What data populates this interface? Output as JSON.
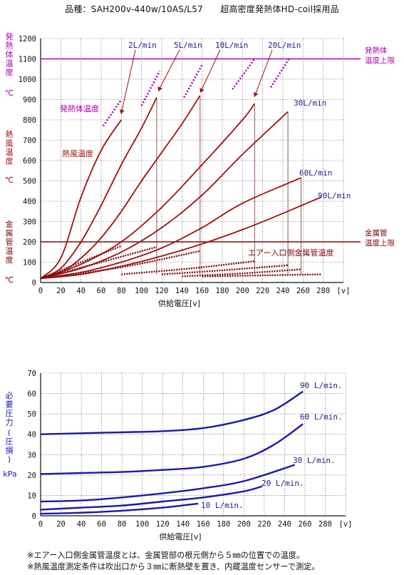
{
  "title": "品種：SAH200v-440w/10AS/L57　　超高密度発熱体HD-coil採用品",
  "notes": [
    "※エアー入口側金属管温度とは、金属管部の根元側から５㎜の位置での温度。",
    "※熱風温度測定条件は吹出口から３㎜に断熱壁を置き、内蔵温度センサーで測定。"
  ],
  "colors": {
    "heater": "#b000b0",
    "hot_air": "#a01010",
    "pipe": "#7a0a0a",
    "pressure": "#1a1aa8",
    "grid": "#555555"
  },
  "chart_data": [
    {
      "type": "line",
      "xlabel": "供給電圧[v]",
      "x_ticks": [
        "0",
        "20",
        "40",
        "60",
        "80",
        "100",
        "120",
        "140",
        "160",
        "180",
        "200",
        "220",
        "240",
        "260",
        "280",
        "[v]"
      ],
      "y_ticks": [
        "0",
        "100",
        "200",
        "300",
        "400",
        "500",
        "600",
        "700",
        "800",
        "900",
        "1000",
        "1100",
        "1200"
      ],
      "xlim": [
        0,
        300
      ],
      "ylim": [
        0,
        1200
      ],
      "grid": true,
      "y_axis_labels": [
        {
          "text": "発熱体温度℃",
          "color": "#b000b0"
        },
        {
          "text": "熱風温度℃",
          "color": "#a01010"
        },
        {
          "text": "金属管温度℃",
          "color": "#7a0a0a"
        }
      ],
      "thresholds": [
        {
          "name": "発熱体温度上限",
          "y": 1100,
          "color": "#b000b0"
        },
        {
          "name": "金属管温度上限",
          "y": 200,
          "color": "#7a0a0a"
        }
      ],
      "annotations": {
        "heater": "発熱体温度",
        "hot_air": "熱風温度",
        "pipe": "エアー入口側金属管温度"
      },
      "series": [
        {
          "name": "2L/min",
          "kind": "hot_air",
          "x": [
            0,
            20,
            40,
            60,
            80
          ],
          "y": [
            20,
            120,
            420,
            650,
            800
          ]
        },
        {
          "name": "5L/min",
          "kind": "hot_air",
          "x": [
            0,
            20,
            40,
            60,
            80,
            100,
            115
          ],
          "y": [
            20,
            70,
            200,
            380,
            580,
            760,
            910
          ]
        },
        {
          "name": "10L/min",
          "kind": "hot_air",
          "x": [
            0,
            20,
            40,
            60,
            80,
            100,
            120,
            140,
            158
          ],
          "y": [
            20,
            50,
            120,
            220,
            350,
            500,
            640,
            780,
            920
          ]
        },
        {
          "name": "20L/min",
          "kind": "hot_air",
          "x": [
            0,
            40,
            80,
            120,
            160,
            200,
            212
          ],
          "y": [
            20,
            90,
            200,
            370,
            580,
            800,
            880
          ]
        },
        {
          "name": "30L/min",
          "kind": "hot_air",
          "x": [
            0,
            40,
            80,
            120,
            160,
            200,
            245
          ],
          "y": [
            20,
            70,
            150,
            270,
            430,
            630,
            840
          ]
        },
        {
          "name": "60L/min",
          "kind": "hot_air",
          "x": [
            0,
            40,
            80,
            120,
            160,
            200,
            258
          ],
          "y": [
            20,
            50,
            100,
            170,
            270,
            390,
            515
          ]
        },
        {
          "name": "90L/min",
          "kind": "hot_air",
          "x": [
            0,
            40,
            80,
            120,
            160,
            200,
            240,
            278
          ],
          "y": [
            20,
            40,
            80,
            130,
            190,
            260,
            340,
            420
          ]
        },
        {
          "name": "発熱体 2L/min",
          "kind": "heater",
          "x": [
            62,
            80
          ],
          "y": [
            770,
            900
          ]
        },
        {
          "name": "発熱体 5L/min",
          "kind": "heater",
          "x": [
            100,
            118
          ],
          "y": [
            870,
            1040
          ]
        },
        {
          "name": "発熱体 10L/min",
          "kind": "heater",
          "x": [
            142,
            160
          ],
          "y": [
            910,
            1070
          ]
        },
        {
          "name": "発熱体 20L/min",
          "kind": "heater",
          "x": [
            190,
            212
          ],
          "y": [
            950,
            1100
          ]
        },
        {
          "name": "発熱体 30L/min",
          "kind": "heater",
          "x": [
            228,
            246
          ],
          "y": [
            960,
            1100
          ]
        },
        {
          "name": "金属管 2L/min",
          "kind": "pipe",
          "x": [
            0,
            40,
            80
          ],
          "y": [
            20,
            100,
            180
          ]
        },
        {
          "name": "金属管 5L/min",
          "kind": "pipe",
          "x": [
            0,
            60,
            115
          ],
          "y": [
            20,
            100,
            175
          ]
        },
        {
          "name": "金属管 10L/min",
          "kind": "pipe",
          "x": [
            0,
            80,
            158
          ],
          "y": [
            20,
            75,
            155
          ]
        },
        {
          "name": "金属管 20L/min",
          "kind": "pipe",
          "x": [
            80,
            150,
            212
          ],
          "y": [
            40,
            70,
            105
          ]
        },
        {
          "name": "金属管 30L/min",
          "kind": "pipe",
          "x": [
            120,
            180,
            245
          ],
          "y": [
            40,
            60,
            85
          ]
        },
        {
          "name": "金属管 60L/min",
          "kind": "pipe",
          "x": [
            140,
            200,
            258
          ],
          "y": [
            30,
            45,
            65
          ]
        },
        {
          "name": "金属管 90L/min",
          "kind": "pipe",
          "x": [
            160,
            220,
            278
          ],
          "y": [
            30,
            35,
            40
          ]
        }
      ]
    },
    {
      "type": "line",
      "xlabel": "供給電圧[v]",
      "ylabel": "必要圧力(圧損)kPa",
      "x_ticks": [
        "0",
        "20",
        "40",
        "60",
        "80",
        "100",
        "120",
        "140",
        "160",
        "180",
        "200",
        "220",
        "240",
        "260",
        "280",
        "[v]"
      ],
      "y_ticks": [
        "0",
        "10",
        "20",
        "30",
        "40",
        "50",
        "60",
        "70"
      ],
      "xlim": [
        0,
        300
      ],
      "ylim": [
        0,
        70
      ],
      "grid": true,
      "series": [
        {
          "name": "90 L/min.",
          "x": [
            0,
            40,
            80,
            120,
            160,
            200,
            230,
            258
          ],
          "y": [
            40,
            40.5,
            41,
            41.5,
            43,
            47,
            52,
            61
          ]
        },
        {
          "name": "60 L/min.",
          "x": [
            0,
            40,
            80,
            120,
            160,
            200,
            230,
            258
          ],
          "y": [
            20.5,
            21,
            21.5,
            22.5,
            24,
            28,
            35,
            45
          ]
        },
        {
          "name": "30 L/min.",
          "x": [
            0,
            40,
            80,
            120,
            160,
            200,
            250
          ],
          "y": [
            7,
            7.5,
            9,
            11,
            13.5,
            17,
            25
          ]
        },
        {
          "name": "20 L/min.",
          "x": [
            0,
            40,
            80,
            120,
            160,
            200,
            218
          ],
          "y": [
            3,
            4,
            5,
            7,
            9,
            12,
            14.5
          ]
        },
        {
          "name": "10 L/min.",
          "x": [
            0,
            40,
            80,
            120,
            155
          ],
          "y": [
            1,
            1.5,
            2.5,
            4,
            6
          ]
        }
      ]
    }
  ]
}
